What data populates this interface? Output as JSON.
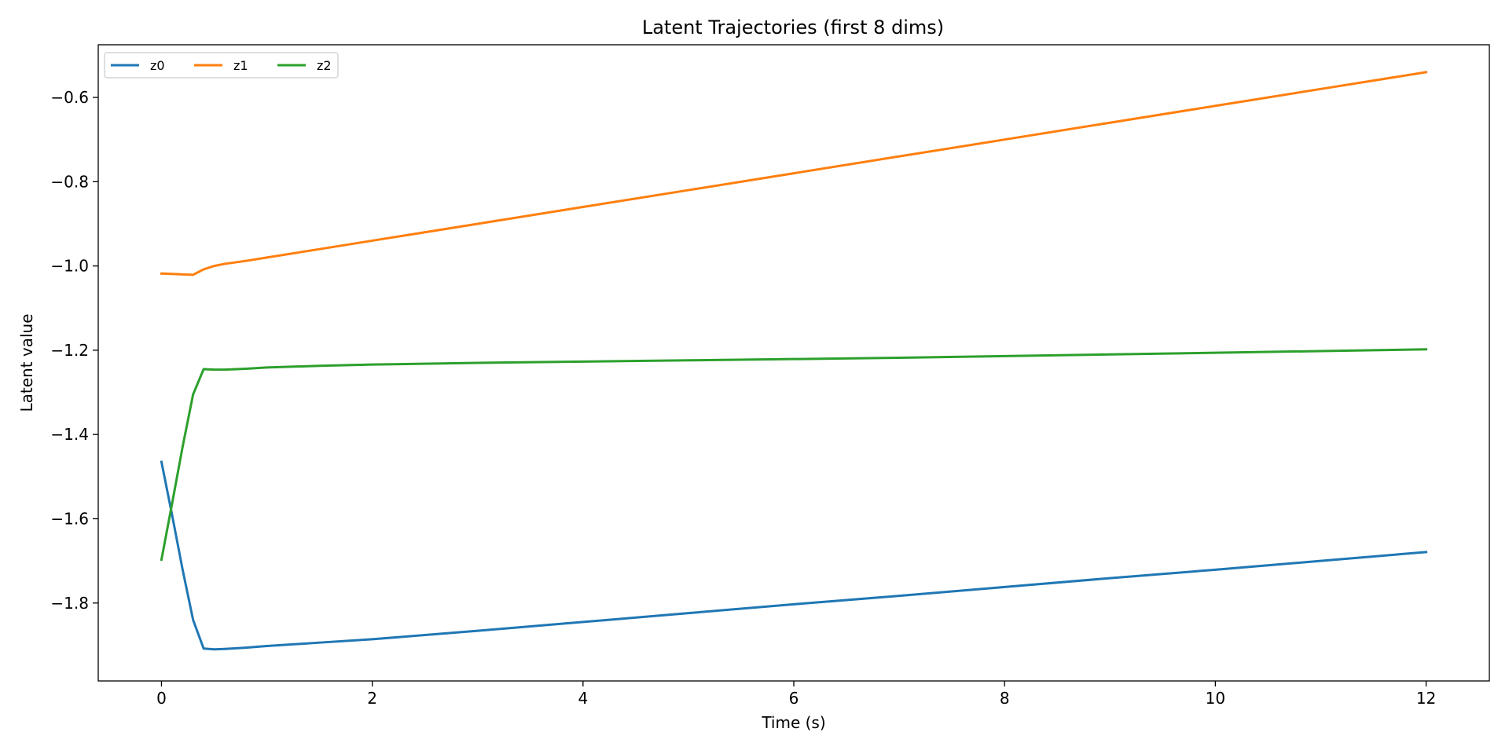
{
  "chart_data": {
    "type": "line",
    "title": "Latent Trajectories (first 8 dims)",
    "xlabel": "Time (s)",
    "ylabel": "Latent value",
    "xlim": [
      -0.6,
      12.6
    ],
    "ylim": [
      -1.985,
      -0.475
    ],
    "xticks": [
      0,
      2,
      4,
      6,
      8,
      10,
      12
    ],
    "xtick_labels": [
      "0",
      "2",
      "4",
      "6",
      "8",
      "10",
      "12"
    ],
    "yticks": [
      -0.6,
      -0.8,
      -1.0,
      -1.2,
      -1.4,
      -1.6,
      -1.8
    ],
    "ytick_labels": [
      "−0.6",
      "−0.8",
      "−1.0",
      "−1.2",
      "−1.4",
      "−1.6",
      "−1.8"
    ],
    "grid": false,
    "legend_position": "top-left",
    "series": [
      {
        "name": "z0",
        "color": "#1f77b4",
        "x": [
          0,
          0.1,
          0.2,
          0.3,
          0.4,
          0.5,
          0.6,
          0.8,
          1,
          1.5,
          2,
          3,
          4,
          5,
          6,
          7,
          8,
          9,
          10,
          11,
          12
        ],
        "y": [
          -1.465,
          -1.59,
          -1.72,
          -1.84,
          -1.908,
          -1.91,
          -1.909,
          -1.906,
          -1.902,
          -1.894,
          -1.886,
          -1.866,
          -1.845,
          -1.824,
          -1.803,
          -1.783,
          -1.762,
          -1.741,
          -1.721,
          -1.7,
          -1.679
        ]
      },
      {
        "name": "z1",
        "color": "#ff7f0e",
        "x": [
          0,
          0.1,
          0.2,
          0.3,
          0.4,
          0.5,
          0.6,
          0.8,
          1,
          1.5,
          2,
          3,
          4,
          5,
          6,
          7,
          8,
          9,
          10,
          11,
          12
        ],
        "y": [
          -1.018,
          -1.019,
          -1.02,
          -1.021,
          -1.008,
          -1.0,
          -0.995,
          -0.988,
          -0.98,
          -0.96,
          -0.94,
          -0.9,
          -0.86,
          -0.82,
          -0.78,
          -0.74,
          -0.7,
          -0.66,
          -0.62,
          -0.58,
          -0.54
        ]
      },
      {
        "name": "z2",
        "color": "#2ca02c",
        "x": [
          0,
          0.1,
          0.2,
          0.3,
          0.4,
          0.5,
          0.6,
          0.8,
          1,
          1.5,
          2,
          3,
          4,
          5,
          6,
          7,
          8,
          9,
          10,
          11,
          12
        ],
        "y": [
          -1.697,
          -1.565,
          -1.43,
          -1.305,
          -1.245,
          -1.246,
          -1.246,
          -1.244,
          -1.241,
          -1.237,
          -1.234,
          -1.23,
          -1.227,
          -1.224,
          -1.221,
          -1.218,
          -1.214,
          -1.21,
          -1.206,
          -1.202,
          -1.198
        ]
      }
    ]
  }
}
